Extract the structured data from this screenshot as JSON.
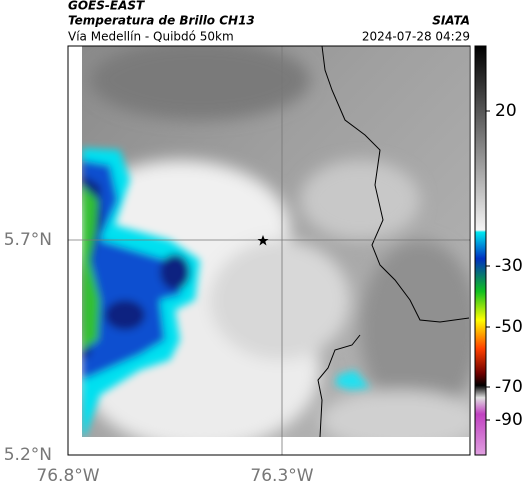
{
  "header": {
    "title": "GOES-EAST",
    "subtitle": "Temperatura de Brillo CH13",
    "source": "SIATA",
    "route": "Vía Medellín - Quibdó 50km",
    "datetime": "2024-07-28 04:29"
  },
  "axes": {
    "yticks": [
      "5.7°N",
      "5.2°N"
    ],
    "xticks": [
      "76.8°W",
      "76.3°W"
    ]
  },
  "colorbar": {
    "ticks": [
      "20",
      "-30",
      "-50",
      "-70",
      "-90"
    ]
  }
}
